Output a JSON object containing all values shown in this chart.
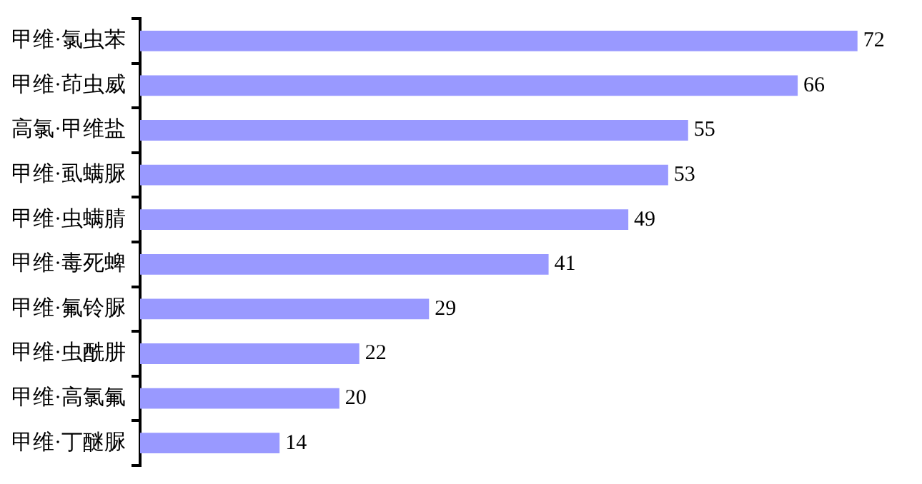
{
  "chart_data": {
    "type": "bar",
    "orientation": "horizontal",
    "data_labels": true,
    "color": "#9999ff",
    "categories": [
      "甲维·氯虫苯",
      "甲维·茚虫威",
      "高氯·甲维盐",
      "甲维·虱螨脲",
      "甲维·虫螨腈",
      "甲维·毒死蜱",
      "甲维·氟铃脲",
      "甲维·虫酰肼",
      "甲维·高氯氟",
      "甲维·丁醚脲"
    ],
    "values": [
      72,
      66,
      55,
      53,
      49,
      41,
      29,
      22,
      20,
      14
    ]
  }
}
